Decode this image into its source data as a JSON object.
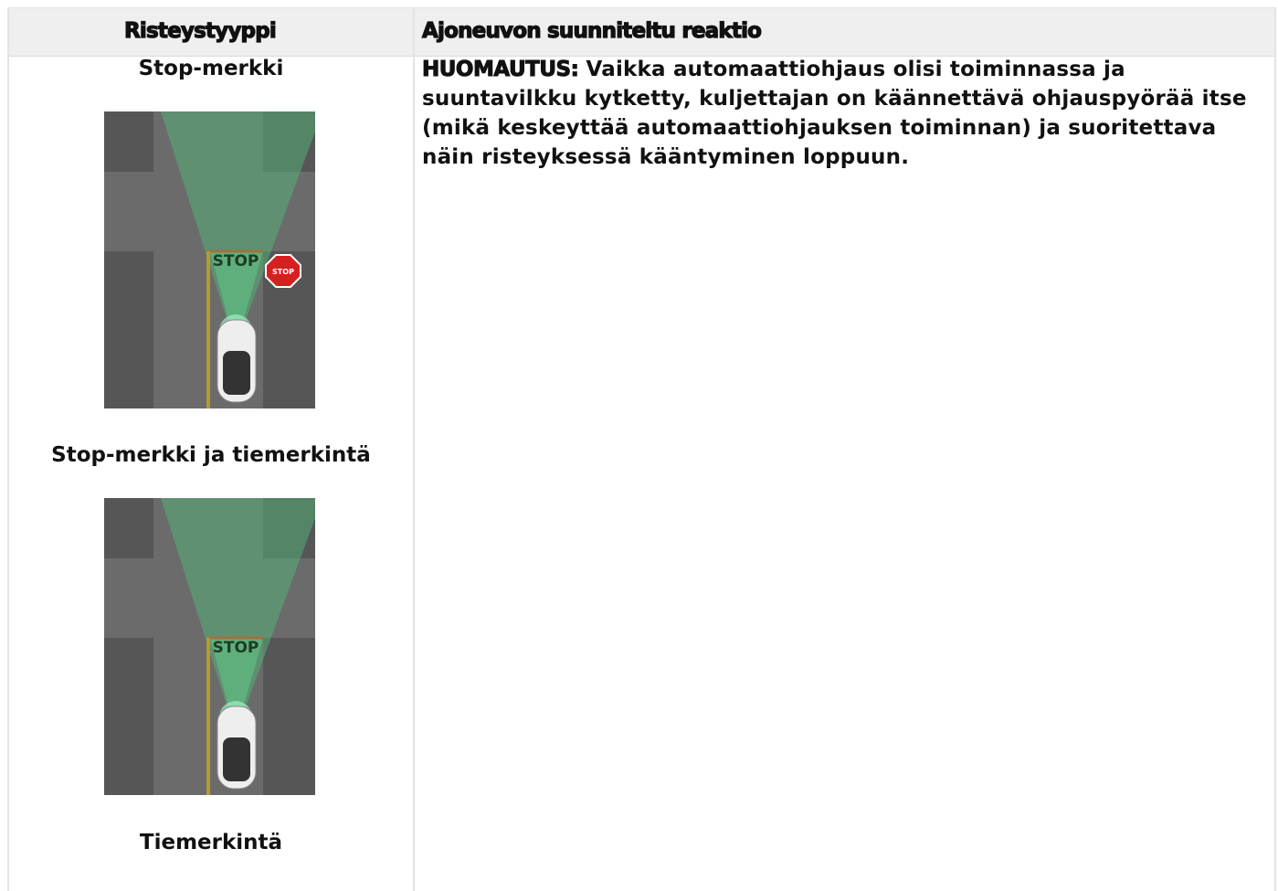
{
  "table": {
    "headers": [
      "Risteystyyppi",
      "Ajoneuvon suunniteltu reaktio"
    ],
    "rows": [
      {
        "types": [
          "Stop-merkki",
          "Stop-merkki ja tiemerkintä",
          "Tiemerkintä"
        ],
        "illustrations": [
          {
            "road_text": "STOP",
            "sign_text": "STOP"
          },
          {
            "road_text": "STOP"
          }
        ],
        "note_label": "HUOMAUTUS:",
        "note_text": "Vaikka automaattiohjaus olisi toiminnassa ja suuntavilkku kytketty, kuljettajan on käännettävä ohjauspyörää itse (mikä keskeyttää automaattiohjauksen toiminnan) ja suoritettava näin risteyksessä kääntyminen loppuun."
      }
    ]
  }
}
